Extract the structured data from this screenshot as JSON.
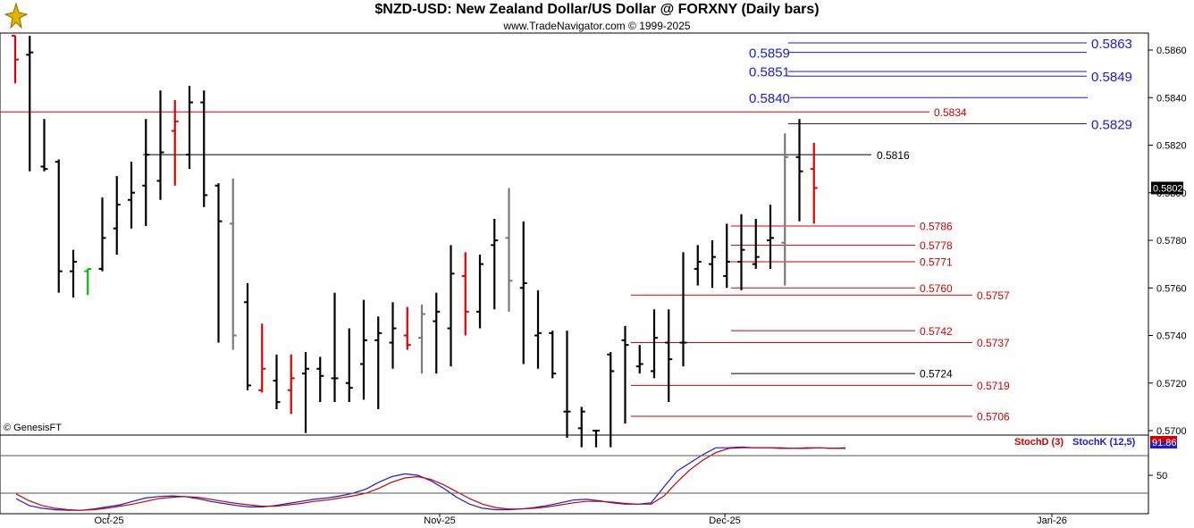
{
  "header": {
    "title": "$NZD-USD:  New Zealand Dollar/US Dollar @ FORXNY  (Daily bars)",
    "subtitle": "www.TradeNavigator.com © 1999-2025",
    "copyright": "© GenesisFT"
  },
  "chart_data": {
    "type": "ohlc",
    "price_axis": {
      "ylim": [
        0.5693,
        0.5866
      ],
      "ticks": [
        "0.5700",
        "0.5720",
        "0.5740",
        "0.5760",
        "0.5780",
        "0.5800",
        "0.5820",
        "0.5840",
        "0.5860"
      ]
    },
    "last_price": "0.5802",
    "x_labels": [
      "Oct-25",
      "Nov-25",
      "Dec-25",
      "Jan-26"
    ],
    "bars": [
      {
        "o": 0.5866,
        "h": 0.5866,
        "l": 0.5846,
        "c": 0.5856,
        "color": "red"
      },
      {
        "o": 0.5858,
        "h": 0.5866,
        "l": 0.5809,
        "c": 0.5859,
        "color": "black"
      },
      {
        "o": 0.5811,
        "h": 0.5831,
        "l": 0.5809,
        "c": 0.581,
        "color": "black"
      },
      {
        "o": 0.5813,
        "h": 0.5814,
        "l": 0.5758,
        "c": 0.5767,
        "color": "black"
      },
      {
        "o": 0.5767,
        "h": 0.5776,
        "l": 0.5756,
        "c": 0.5771,
        "color": "black"
      },
      {
        "o": 0.5767,
        "h": 0.5768,
        "l": 0.5757,
        "c": 0.5768,
        "color": "green"
      },
      {
        "o": 0.5768,
        "h": 0.5798,
        "l": 0.5767,
        "c": 0.5781,
        "color": "black"
      },
      {
        "o": 0.5785,
        "h": 0.5807,
        "l": 0.5774,
        "c": 0.5795,
        "color": "black"
      },
      {
        "o": 0.5797,
        "h": 0.5813,
        "l": 0.5785,
        "c": 0.58,
        "color": "black"
      },
      {
        "o": 0.5803,
        "h": 0.5831,
        "l": 0.5786,
        "c": 0.5816,
        "color": "black"
      },
      {
        "o": 0.5805,
        "h": 0.5843,
        "l": 0.5797,
        "c": 0.5817,
        "color": "black"
      },
      {
        "o": 0.5826,
        "h": 0.5839,
        "l": 0.5803,
        "c": 0.583,
        "color": "red"
      },
      {
        "o": 0.5816,
        "h": 0.5845,
        "l": 0.581,
        "c": 0.5838,
        "color": "black"
      },
      {
        "o": 0.5838,
        "h": 0.5843,
        "l": 0.5794,
        "c": 0.5799,
        "color": "black"
      },
      {
        "o": 0.5803,
        "h": 0.5804,
        "l": 0.5737,
        "c": 0.5788,
        "color": "black"
      },
      {
        "o": 0.5787,
        "h": 0.5806,
        "l": 0.5734,
        "c": 0.574,
        "color": "gray"
      },
      {
        "o": 0.5754,
        "h": 0.5762,
        "l": 0.5717,
        "c": 0.5719,
        "color": "black"
      },
      {
        "o": 0.5717,
        "h": 0.5745,
        "l": 0.5716,
        "c": 0.5726,
        "color": "red"
      },
      {
        "o": 0.5721,
        "h": 0.5732,
        "l": 0.5709,
        "c": 0.5712,
        "color": "black"
      },
      {
        "o": 0.5717,
        "h": 0.5732,
        "l": 0.5707,
        "c": 0.5722,
        "color": "red"
      },
      {
        "o": 0.5724,
        "h": 0.5733,
        "l": 0.5699,
        "c": 0.5726,
        "color": "black"
      },
      {
        "o": 0.5726,
        "h": 0.5731,
        "l": 0.5712,
        "c": 0.5723,
        "color": "black"
      },
      {
        "o": 0.5722,
        "h": 0.5758,
        "l": 0.5712,
        "c": 0.5722,
        "color": "black"
      },
      {
        "o": 0.572,
        "h": 0.5743,
        "l": 0.5712,
        "c": 0.5718,
        "color": "black"
      },
      {
        "o": 0.5728,
        "h": 0.5755,
        "l": 0.5713,
        "c": 0.5738,
        "color": "black"
      },
      {
        "o": 0.5738,
        "h": 0.5748,
        "l": 0.5709,
        "c": 0.5741,
        "color": "black"
      },
      {
        "o": 0.5737,
        "h": 0.5754,
        "l": 0.5726,
        "c": 0.5743,
        "color": "black"
      },
      {
        "o": 0.574,
        "h": 0.5752,
        "l": 0.5734,
        "c": 0.5736,
        "color": "red"
      },
      {
        "o": 0.5739,
        "h": 0.5753,
        "l": 0.5724,
        "c": 0.5749,
        "color": "gray"
      },
      {
        "o": 0.5746,
        "h": 0.5758,
        "l": 0.5724,
        "c": 0.575,
        "color": "black"
      },
      {
        "o": 0.5743,
        "h": 0.5778,
        "l": 0.5727,
        "c": 0.5766,
        "color": "black"
      },
      {
        "o": 0.5765,
        "h": 0.5775,
        "l": 0.574,
        "c": 0.575,
        "color": "red"
      },
      {
        "o": 0.575,
        "h": 0.5774,
        "l": 0.5743,
        "c": 0.577,
        "color": "black"
      },
      {
        "o": 0.5778,
        "h": 0.5789,
        "l": 0.5751,
        "c": 0.578,
        "color": "black"
      },
      {
        "o": 0.5781,
        "h": 0.5802,
        "l": 0.575,
        "c": 0.5763,
        "color": "gray"
      },
      {
        "o": 0.576,
        "h": 0.5788,
        "l": 0.5728,
        "c": 0.5762,
        "color": "black"
      },
      {
        "o": 0.574,
        "h": 0.5759,
        "l": 0.5726,
        "c": 0.5741,
        "color": "black"
      },
      {
        "o": 0.5741,
        "h": 0.5742,
        "l": 0.5722,
        "c": 0.5724,
        "color": "black"
      },
      {
        "o": 0.5708,
        "h": 0.5742,
        "l": 0.5697,
        "c": 0.5708,
        "color": "black"
      },
      {
        "o": 0.5701,
        "h": 0.571,
        "l": 0.5693,
        "c": 0.5708,
        "color": "black"
      },
      {
        "o": 0.57,
        "h": 0.57,
        "l": 0.5693,
        "c": 0.57,
        "color": "black"
      },
      {
        "o": 0.5732,
        "h": 0.5733,
        "l": 0.5693,
        "c": 0.5725,
        "color": "black"
      },
      {
        "o": 0.5738,
        "h": 0.5744,
        "l": 0.5703,
        "c": 0.5736,
        "color": "black"
      },
      {
        "o": 0.5727,
        "h": 0.5736,
        "l": 0.5724,
        "c": 0.5728,
        "color": "black"
      },
      {
        "o": 0.5725,
        "h": 0.5751,
        "l": 0.5722,
        "c": 0.5739,
        "color": "black"
      },
      {
        "o": 0.5737,
        "h": 0.5751,
        "l": 0.5712,
        "c": 0.573,
        "color": "black"
      },
      {
        "o": 0.5737,
        "h": 0.5775,
        "l": 0.5727,
        "c": 0.5737,
        "color": "black"
      },
      {
        "o": 0.5768,
        "h": 0.5778,
        "l": 0.5761,
        "c": 0.5771,
        "color": "black"
      },
      {
        "o": 0.577,
        "h": 0.578,
        "l": 0.576,
        "c": 0.5773,
        "color": "black"
      },
      {
        "o": 0.5765,
        "h": 0.5787,
        "l": 0.576,
        "c": 0.5771,
        "color": "black"
      },
      {
        "o": 0.5771,
        "h": 0.5791,
        "l": 0.5759,
        "c": 0.5776,
        "color": "black"
      },
      {
        "o": 0.577,
        "h": 0.5789,
        "l": 0.5768,
        "c": 0.5773,
        "color": "black"
      },
      {
        "o": 0.578,
        "h": 0.5795,
        "l": 0.5768,
        "c": 0.5781,
        "color": "black"
      },
      {
        "o": 0.5779,
        "h": 0.5825,
        "l": 0.5761,
        "c": 0.5815,
        "color": "gray"
      },
      {
        "o": 0.5815,
        "h": 0.5831,
        "l": 0.5788,
        "c": 0.5809,
        "color": "black"
      },
      {
        "o": 0.581,
        "h": 0.5821,
        "l": 0.5787,
        "c": 0.5802,
        "color": "red"
      }
    ],
    "levels": [
      {
        "label": "0.5863",
        "value": 0.5863,
        "color": "#1a1ad8",
        "style": "blue",
        "row": 1
      },
      {
        "label": "0.5859",
        "value": 0.5859,
        "color": "#1a1ad8",
        "style": "blue",
        "row": 0
      },
      {
        "label": "0.5851",
        "value": 0.5851,
        "color": "#1a1ad8",
        "style": "blue",
        "row": 0
      },
      {
        "label": "0.5849",
        "value": 0.5849,
        "color": "#1a1ad8",
        "style": "blue",
        "row": 1
      },
      {
        "label": "0.5840",
        "value": 0.584,
        "color": "#1a1ad8",
        "style": "blue",
        "row": 0
      },
      {
        "label": "0.5834",
        "value": 0.5834,
        "color": "#d00000",
        "style": "redfull",
        "row": 0
      },
      {
        "label": "0.5829",
        "value": 0.5829,
        "color": "#1a1ad8",
        "style": "blue",
        "row": 1
      },
      {
        "label": "0.5816",
        "value": 0.5816,
        "color": "#000000",
        "style": "blackfull",
        "row": 0
      },
      {
        "label": "0.5786",
        "value": 0.5786,
        "color": "#d00000",
        "style": "redA",
        "row": 0
      },
      {
        "label": "0.5778",
        "value": 0.5778,
        "color": "#d00000",
        "style": "redA",
        "row": 0
      },
      {
        "label": "0.5771",
        "value": 0.5771,
        "color": "#d00000",
        "style": "redA",
        "row": 0
      },
      {
        "label": "0.5760",
        "value": 0.576,
        "color": "#d00000",
        "style": "redA",
        "row": 0
      },
      {
        "label": "0.5757",
        "value": 0.5757,
        "color": "#d00000",
        "style": "redB",
        "row": 0
      },
      {
        "label": "0.5742",
        "value": 0.5742,
        "color": "#d00000",
        "style": "redA",
        "row": 0
      },
      {
        "label": "0.5737",
        "value": 0.5737,
        "color": "#d00000",
        "style": "redB",
        "row": 0
      },
      {
        "label": "0.5724",
        "value": 0.5724,
        "color": "#000000",
        "style": "blackA",
        "row": 0
      },
      {
        "label": "0.5719",
        "value": 0.5719,
        "color": "#d00000",
        "style": "redB",
        "row": 0
      },
      {
        "label": "0.5706",
        "value": 0.5706,
        "color": "#d00000",
        "style": "redB",
        "row": 0
      }
    ],
    "stochastic": {
      "labels": {
        "d": "StochD (3)",
        "k": "StochK (12,5)"
      },
      "last_value": "91.86",
      "axis_label": "50",
      "k_color": "#1a1ad8",
      "d_color": "#d00000",
      "k": [
        18,
        8,
        4,
        2,
        1,
        1,
        3,
        6,
        9,
        14,
        19,
        21,
        22,
        21,
        18,
        14,
        11,
        8,
        6,
        6,
        8,
        11,
        14,
        17,
        19,
        22,
        26,
        32,
        42,
        50,
        54,
        52,
        44,
        33,
        20,
        10,
        4,
        2,
        2,
        3,
        5,
        8,
        12,
        16,
        17,
        15,
        12,
        10,
        10,
        12,
        35,
        58,
        70,
        82,
        92,
        92,
        93,
        92,
        92,
        92,
        91,
        92,
        92,
        91,
        92
      ],
      "d": [
        25,
        15,
        8,
        4,
        2,
        1,
        2,
        4,
        7,
        10,
        14,
        18,
        20,
        21,
        20,
        17,
        14,
        11,
        9,
        7,
        7,
        9,
        11,
        14,
        16,
        19,
        22,
        26,
        33,
        42,
        48,
        50,
        46,
        38,
        28,
        18,
        10,
        5,
        3,
        3,
        4,
        6,
        9,
        12,
        14,
        14,
        13,
        11,
        10,
        10,
        22,
        42,
        60,
        74,
        85,
        91,
        92,
        92,
        92,
        91,
        91,
        91,
        92,
        91,
        91
      ]
    }
  }
}
